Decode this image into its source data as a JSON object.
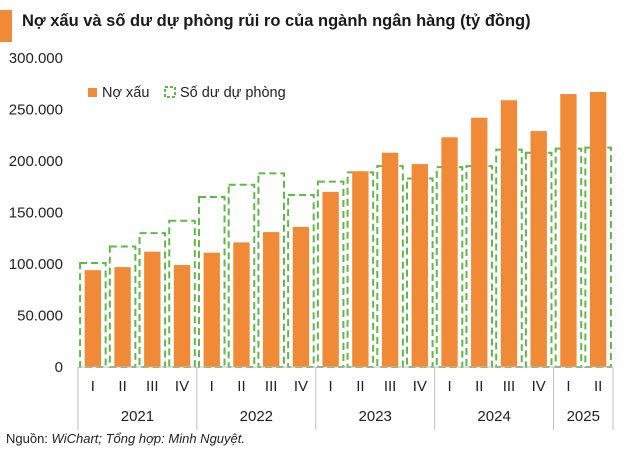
{
  "chart_data": {
    "type": "bar",
    "title": "Nợ xấu và số dư dự phòng rủi ro của ngành ngân hàng (tỷ đồng)",
    "xlabel": "",
    "ylabel": "",
    "ylim": [
      0,
      300000
    ],
    "yticks": [
      0,
      50000,
      100000,
      150000,
      200000,
      250000,
      300000
    ],
    "ytick_labels": [
      "0",
      "50.000",
      "100.000",
      "150.000",
      "200.000",
      "250.000",
      "300.000"
    ],
    "categories": [
      "I",
      "II",
      "III",
      "IV",
      "I",
      "II",
      "III",
      "IV",
      "I",
      "II",
      "III",
      "IV",
      "I",
      "II",
      "III",
      "IV",
      "I",
      "II"
    ],
    "years": [
      {
        "label": "2021",
        "count": 4
      },
      {
        "label": "2022",
        "count": 4
      },
      {
        "label": "2023",
        "count": 4
      },
      {
        "label": "2024",
        "count": 4
      },
      {
        "label": "2025",
        "count": 2
      }
    ],
    "series": [
      {
        "name": "Nợ xấu",
        "style": "solid",
        "color": "#f08a36",
        "values": [
          94000,
          97000,
          112000,
          99000,
          111000,
          121000,
          131000,
          136000,
          170000,
          190000,
          208000,
          197000,
          223000,
          242000,
          259000,
          229000,
          265000,
          267000
        ]
      },
      {
        "name": "Số dư dự phòng",
        "style": "dashed",
        "color": "#5fb848",
        "values": [
          101000,
          117000,
          130000,
          142000,
          165000,
          177000,
          188000,
          167000,
          180000,
          189000,
          195000,
          183000,
          194000,
          195000,
          211000,
          208000,
          212000,
          213000
        ]
      }
    ],
    "legend": "top-left",
    "grid": false
  },
  "source": {
    "prefix": "Nguồn: ",
    "source_name": "WiChart; Tổng hợp: Minh Nguyệt."
  }
}
